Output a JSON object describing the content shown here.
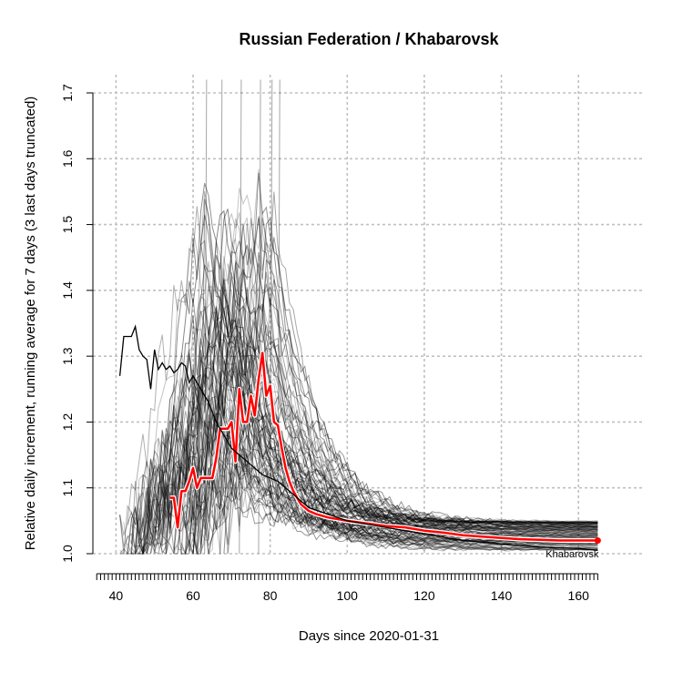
{
  "chart_data": {
    "type": "line",
    "title": "Russian Federation / Khabarovsk",
    "xlabel": "Days since 2020-01-31",
    "ylabel": "Relative daily increment, running average for 7 days (3 last days truncated)",
    "xlim": [
      34,
      172
    ],
    "ylim": [
      1.0,
      1.7
    ],
    "x_ticks": [
      40,
      60,
      80,
      100,
      120,
      140,
      160
    ],
    "y_ticks": [
      1.0,
      1.1,
      1.2,
      1.3,
      1.4,
      1.5,
      1.6,
      1.7
    ],
    "grid": true,
    "colors": {
      "highlight": "#ff0000",
      "background_series": "#000000",
      "grid": "#c0c0c0"
    },
    "highlight_label": "Khabarovsk",
    "series": [
      {
        "name": "Khabarovsk",
        "x": [
          54,
          55,
          56,
          57,
          58,
          59,
          60,
          61,
          62,
          63,
          64,
          65,
          66,
          67,
          68,
          69,
          70,
          71,
          72,
          73,
          74,
          75,
          76,
          77,
          78,
          79,
          80,
          81,
          82,
          83,
          84,
          85,
          86,
          87,
          88,
          89,
          90,
          92,
          95,
          100,
          105,
          110,
          115,
          120,
          125,
          130,
          135,
          140,
          145,
          150,
          155,
          160,
          165
        ],
        "y": [
          1.085,
          1.085,
          1.04,
          1.095,
          1.095,
          1.11,
          1.13,
          1.1,
          1.115,
          1.115,
          1.115,
          1.115,
          1.145,
          1.19,
          1.19,
          1.19,
          1.2,
          1.14,
          1.25,
          1.2,
          1.2,
          1.24,
          1.21,
          1.265,
          1.305,
          1.24,
          1.255,
          1.2,
          1.195,
          1.16,
          1.13,
          1.11,
          1.095,
          1.085,
          1.075,
          1.07,
          1.065,
          1.06,
          1.055,
          1.05,
          1.046,
          1.042,
          1.04,
          1.035,
          1.032,
          1.028,
          1.026,
          1.024,
          1.022,
          1.021,
          1.02,
          1.02,
          1.02
        ]
      },
      {
        "name": "",
        "x": [
          41,
          42,
          43,
          44,
          45,
          46,
          47,
          48,
          49,
          50,
          51,
          52,
          53,
          54,
          55,
          56,
          57,
          58,
          59,
          60,
          62,
          64,
          66,
          68,
          70,
          72,
          74,
          76,
          78,
          80,
          82,
          84,
          86,
          88,
          90,
          95,
          100,
          110,
          120,
          130,
          140,
          150,
          160,
          165
        ],
        "y": [
          1.27,
          1.33,
          1.33,
          1.33,
          1.345,
          1.31,
          1.3,
          1.295,
          1.25,
          1.31,
          1.28,
          1.29,
          1.28,
          1.285,
          1.275,
          1.28,
          1.29,
          1.285,
          1.26,
          1.27,
          1.25,
          1.23,
          1.2,
          1.18,
          1.16,
          1.15,
          1.14,
          1.13,
          1.12,
          1.115,
          1.11,
          1.1,
          1.09,
          1.08,
          1.07,
          1.06,
          1.05,
          1.04,
          1.03,
          1.02,
          1.015,
          1.01,
          1.008,
          1.005
        ]
      }
    ]
  }
}
